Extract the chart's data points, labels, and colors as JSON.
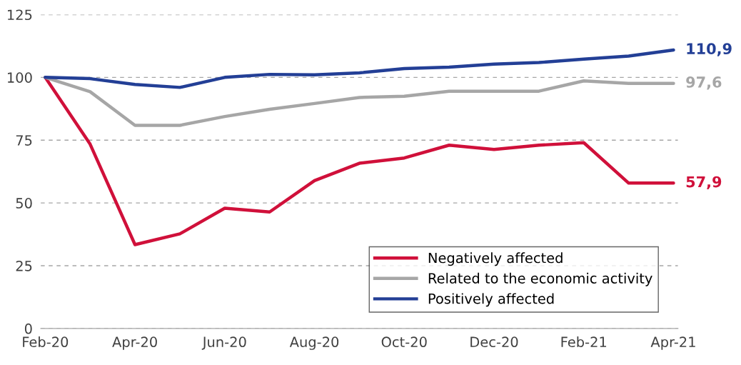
{
  "chart_data": {
    "type": "line",
    "categories": [
      "Feb-20",
      null,
      "Apr-20",
      null,
      "Jun-20",
      null,
      "Aug-20",
      null,
      "Oct-20",
      null,
      "Dec-20",
      null,
      "Feb-21",
      null,
      "Apr-21"
    ],
    "series": [
      {
        "name": "Negatively affected",
        "color": "#d0103a",
        "values": [
          100,
          73.4,
          33.4,
          37.7,
          47.9,
          46.4,
          58.9,
          65.8,
          67.9,
          73,
          71.3,
          73,
          74,
          57.9,
          57.9
        ],
        "value_labels": [
          null,
          null,
          null,
          null,
          null,
          null,
          null,
          null,
          null,
          null,
          null,
          null,
          null,
          null,
          "57,9"
        ]
      },
      {
        "name": "Related to the economic activity",
        "color": "#a6a6a6",
        "values": [
          100,
          94.3,
          80.9,
          80.9,
          84.4,
          87.3,
          89.6,
          92,
          92.5,
          94.5,
          94.5,
          94.5,
          98.6,
          97.6,
          97.6
        ],
        "value_labels": [
          null,
          null,
          null,
          null,
          null,
          null,
          null,
          null,
          null,
          null,
          null,
          null,
          null,
          null,
          "97,6"
        ]
      },
      {
        "name": "Positively affected",
        "color": "#233f96",
        "values": [
          100,
          99.5,
          97.2,
          96,
          100,
          101.2,
          101,
          101.8,
          103.5,
          104.1,
          105.3,
          105.9,
          107.3,
          108.5,
          110.9
        ],
        "value_labels": [
          null,
          null,
          null,
          null,
          null,
          null,
          null,
          null,
          null,
          null,
          null,
          null,
          null,
          null,
          "110,9"
        ]
      }
    ],
    "ylim": [
      0,
      125
    ],
    "yticks": [
      0,
      25,
      50,
      75,
      100,
      125
    ],
    "grid": "y",
    "legend": "bottom right",
    "marker": "none",
    "line_style": "solid"
  }
}
